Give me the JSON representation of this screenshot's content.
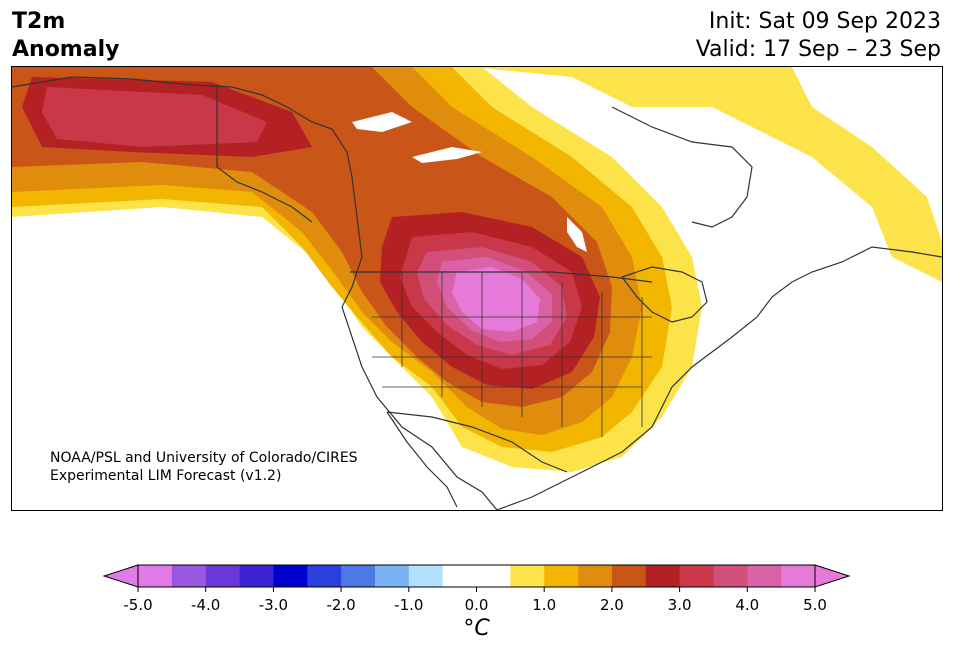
{
  "header": {
    "title_line1": "T2m",
    "title_line2": "Anomaly",
    "init_label": "Init: Sat 09 Sep 2023",
    "valid_label": "Valid: 17 Sep – 23 Sep"
  },
  "credit": {
    "line1": "NOAA/PSL and University of Colorado/CIRES",
    "line2": "Experimental LIM Forecast (v1.2)"
  },
  "colorbar": {
    "unit_label": "°C",
    "ticks": [
      "-5.0",
      "-4.0",
      "-3.0",
      "-2.0",
      "-1.0",
      "0.0",
      "1.0",
      "2.0",
      "3.0",
      "4.0",
      "5.0"
    ],
    "colors": [
      "#e07ae6",
      "#9a57e0",
      "#6a3ad9",
      "#3a22d4",
      "#0000cc",
      "#2a3fdc",
      "#4d78e6",
      "#78b2f0",
      "#b0e0fa",
      "#ffffff",
      "#ffffff",
      "#fde34a",
      "#f3b600",
      "#e08d0e",
      "#c95518",
      "#b32124",
      "#c83848",
      "#d24f7a",
      "#da63a8",
      "#e57ad8"
    ],
    "min": -5.0,
    "max": 5.0,
    "step": 0.5
  },
  "map_colors": {
    "land": "#ffffff",
    "border": "#333333",
    "lake": "#ffffff"
  }
}
